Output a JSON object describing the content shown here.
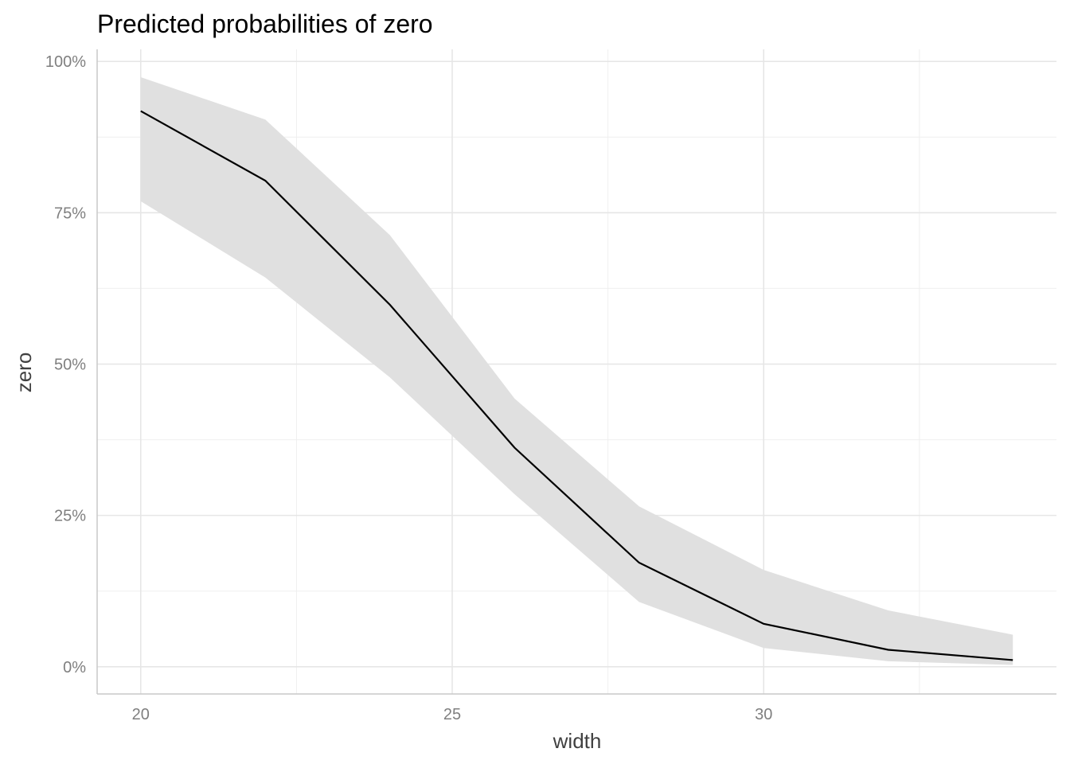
{
  "chart_data": {
    "type": "line",
    "title": "Predicted probabilities of zero",
    "xlabel": "width",
    "ylabel": "zero",
    "xlim": [
      19.3,
      34.7
    ],
    "ylim": [
      -0.045,
      1.02
    ],
    "x_ticks": [
      20,
      25,
      30
    ],
    "x_tick_labels": [
      "20",
      "25",
      "30"
    ],
    "x_minor_ticks": [
      22.5,
      27.5,
      32.5
    ],
    "y_ticks": [
      0,
      0.25,
      0.5,
      0.75,
      1.0
    ],
    "y_tick_labels": [
      "0%",
      "25%",
      "50%",
      "75%",
      "100%"
    ],
    "y_minor_ticks": [
      0.125,
      0.375,
      0.625,
      0.875
    ],
    "grid": true,
    "series": [
      {
        "x": [
          20,
          22,
          24,
          26,
          28,
          30,
          32,
          34
        ],
        "y": [
          0.918,
          0.803,
          0.598,
          0.362,
          0.172,
          0.071,
          0.028,
          0.011
        ],
        "ci_lower": [
          0.769,
          0.643,
          0.478,
          0.285,
          0.107,
          0.031,
          0.009,
          0.003
        ],
        "ci_upper": [
          0.974,
          0.904,
          0.713,
          0.443,
          0.265,
          0.16,
          0.093,
          0.053
        ]
      }
    ],
    "colors": {
      "line": "#000000",
      "ribbon": "#e0e0e0",
      "grid": "#e6e6e6",
      "tick_text": "#7f7f7f",
      "axis_text": "#404040"
    }
  }
}
